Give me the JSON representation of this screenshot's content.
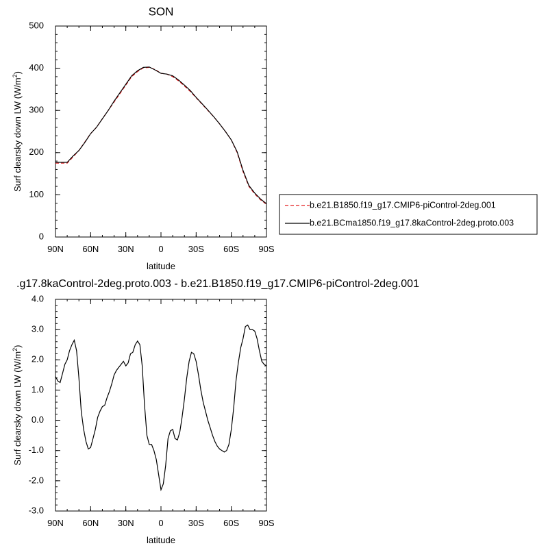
{
  "chart_data": [
    {
      "type": "line",
      "title": "SON",
      "xlabel": "latitude",
      "ylabel": "Surf clearsky down LW (W/m",
      "ylabel_sup": "2",
      "ylabel_close": ")",
      "xlim": [
        90,
        -90
      ],
      "ylim": [
        0,
        500
      ],
      "xticks": [
        90,
        60,
        30,
        0,
        -30,
        -60,
        -90
      ],
      "xtick_labels": [
        "90N",
        "60N",
        "30N",
        "0",
        "30S",
        "60S",
        "90S"
      ],
      "yticks": [
        0,
        100,
        200,
        300,
        400,
        500
      ],
      "ytick_labels": [
        "0",
        "100",
        "200",
        "300",
        "400",
        "500"
      ],
      "legend": "right",
      "series": [
        {
          "name": "b.e21.B1850.f19_g17.CMIP6-piControl-2deg.001",
          "color": "#e41a1c",
          "dash": "dashed",
          "x": [
            90,
            85,
            80,
            75,
            70,
            65,
            60,
            55,
            50,
            45,
            40,
            35,
            30,
            25,
            20,
            15,
            10,
            5,
            0,
            -5,
            -10,
            -15,
            -20,
            -25,
            -30,
            -35,
            -40,
            -45,
            -50,
            -55,
            -60,
            -65,
            -70,
            -75,
            -80,
            -85,
            -90
          ],
          "y": [
            175,
            175,
            175,
            190,
            205,
            225,
            245,
            260,
            280,
            300,
            320,
            340,
            360,
            380,
            392,
            401,
            402,
            397,
            388,
            386,
            380,
            370,
            358,
            345,
            330,
            315,
            300,
            285,
            268,
            250,
            230,
            200,
            155,
            120,
            102,
            88,
            78
          ]
        },
        {
          "name": "b.e21.BCma1850.f19_g17.8kaControl-2deg.proto.003",
          "color": "#000000",
          "dash": "solid",
          "x": [
            90,
            85,
            80,
            75,
            70,
            65,
            60,
            55,
            50,
            45,
            40,
            35,
            30,
            25,
            20,
            15,
            10,
            5,
            0,
            -5,
            -10,
            -15,
            -20,
            -25,
            -30,
            -35,
            -40,
            -45,
            -50,
            -55,
            -60,
            -65,
            -70,
            -75,
            -80,
            -85,
            -90
          ],
          "y": [
            177,
            177,
            177,
            192,
            205,
            224,
            245,
            260,
            280,
            300,
            322,
            342,
            362,
            382,
            394,
            402,
            403,
            396,
            388,
            386,
            382,
            372,
            360,
            347,
            331,
            316,
            301,
            285,
            268,
            250,
            230,
            202,
            158,
            122,
            104,
            90,
            79
          ]
        }
      ]
    },
    {
      "type": "line",
      "title": ".g17.8kaControl-2deg.proto.003 - b.e21.B1850.f19_g17.CMIP6-piControl-2deg.001",
      "xlabel": "latitude",
      "ylabel": "Surf clearsky down LW (W/m",
      "ylabel_sup": "2",
      "ylabel_close": ")",
      "xlim": [
        90,
        -90
      ],
      "ylim": [
        -3,
        4
      ],
      "xticks": [
        90,
        60,
        30,
        0,
        -30,
        -60,
        -90
      ],
      "xtick_labels": [
        "90N",
        "60N",
        "30N",
        "0",
        "30S",
        "60S",
        "90S"
      ],
      "yticks": [
        -3,
        -2,
        -1,
        0,
        1,
        2,
        3,
        4
      ],
      "ytick_labels": [
        "-3.0",
        "-2.0",
        "-1.0",
        "0.0",
        "1.0",
        "2.0",
        "3.0",
        "4.0"
      ],
      "series": [
        {
          "color": "#000000",
          "dash": "solid",
          "x": [
            90,
            88,
            86,
            84,
            82,
            80,
            78,
            76,
            74,
            72,
            70,
            68,
            66,
            64,
            62,
            60,
            58,
            56,
            54,
            52,
            50,
            48,
            46,
            44,
            42,
            40,
            38,
            36,
            34,
            32,
            30,
            28,
            26,
            24,
            22,
            20,
            18,
            16,
            14,
            12,
            10,
            8,
            6,
            4,
            2,
            0,
            -2,
            -4,
            -6,
            -8,
            -10,
            -12,
            -14,
            -16,
            -18,
            -20,
            -22,
            -24,
            -26,
            -28,
            -30,
            -32,
            -34,
            -36,
            -38,
            -40,
            -42,
            -44,
            -46,
            -48,
            -50,
            -52,
            -54,
            -56,
            -58,
            -60,
            -62,
            -64,
            -66,
            -68,
            -70,
            -72,
            -74,
            -76,
            -78,
            -80,
            -82,
            -84,
            -86,
            -88,
            -90
          ],
          "y": [
            1.45,
            1.3,
            1.25,
            1.55,
            1.85,
            2.0,
            2.3,
            2.5,
            2.65,
            2.3,
            1.4,
            0.3,
            -0.3,
            -0.7,
            -0.95,
            -0.9,
            -0.6,
            -0.3,
            0.1,
            0.3,
            0.45,
            0.5,
            0.75,
            0.95,
            1.2,
            1.5,
            1.65,
            1.75,
            1.85,
            1.95,
            1.8,
            1.9,
            2.2,
            2.25,
            2.5,
            2.62,
            2.5,
            1.8,
            0.5,
            -0.5,
            -0.8,
            -0.8,
            -1.0,
            -1.3,
            -1.8,
            -2.3,
            -2.1,
            -1.5,
            -0.6,
            -0.35,
            -0.3,
            -0.6,
            -0.65,
            -0.4,
            0.1,
            0.7,
            1.4,
            1.95,
            2.25,
            2.2,
            1.95,
            1.5,
            1.0,
            0.6,
            0.3,
            0.0,
            -0.25,
            -0.5,
            -0.7,
            -0.85,
            -0.95,
            -1.0,
            -1.05,
            -1.0,
            -0.8,
            -0.3,
            0.4,
            1.3,
            1.9,
            2.4,
            2.7,
            3.1,
            3.15,
            3.0,
            3.0,
            2.95,
            2.7,
            2.3,
            1.95,
            1.85,
            1.8
          ]
        }
      ]
    }
  ]
}
